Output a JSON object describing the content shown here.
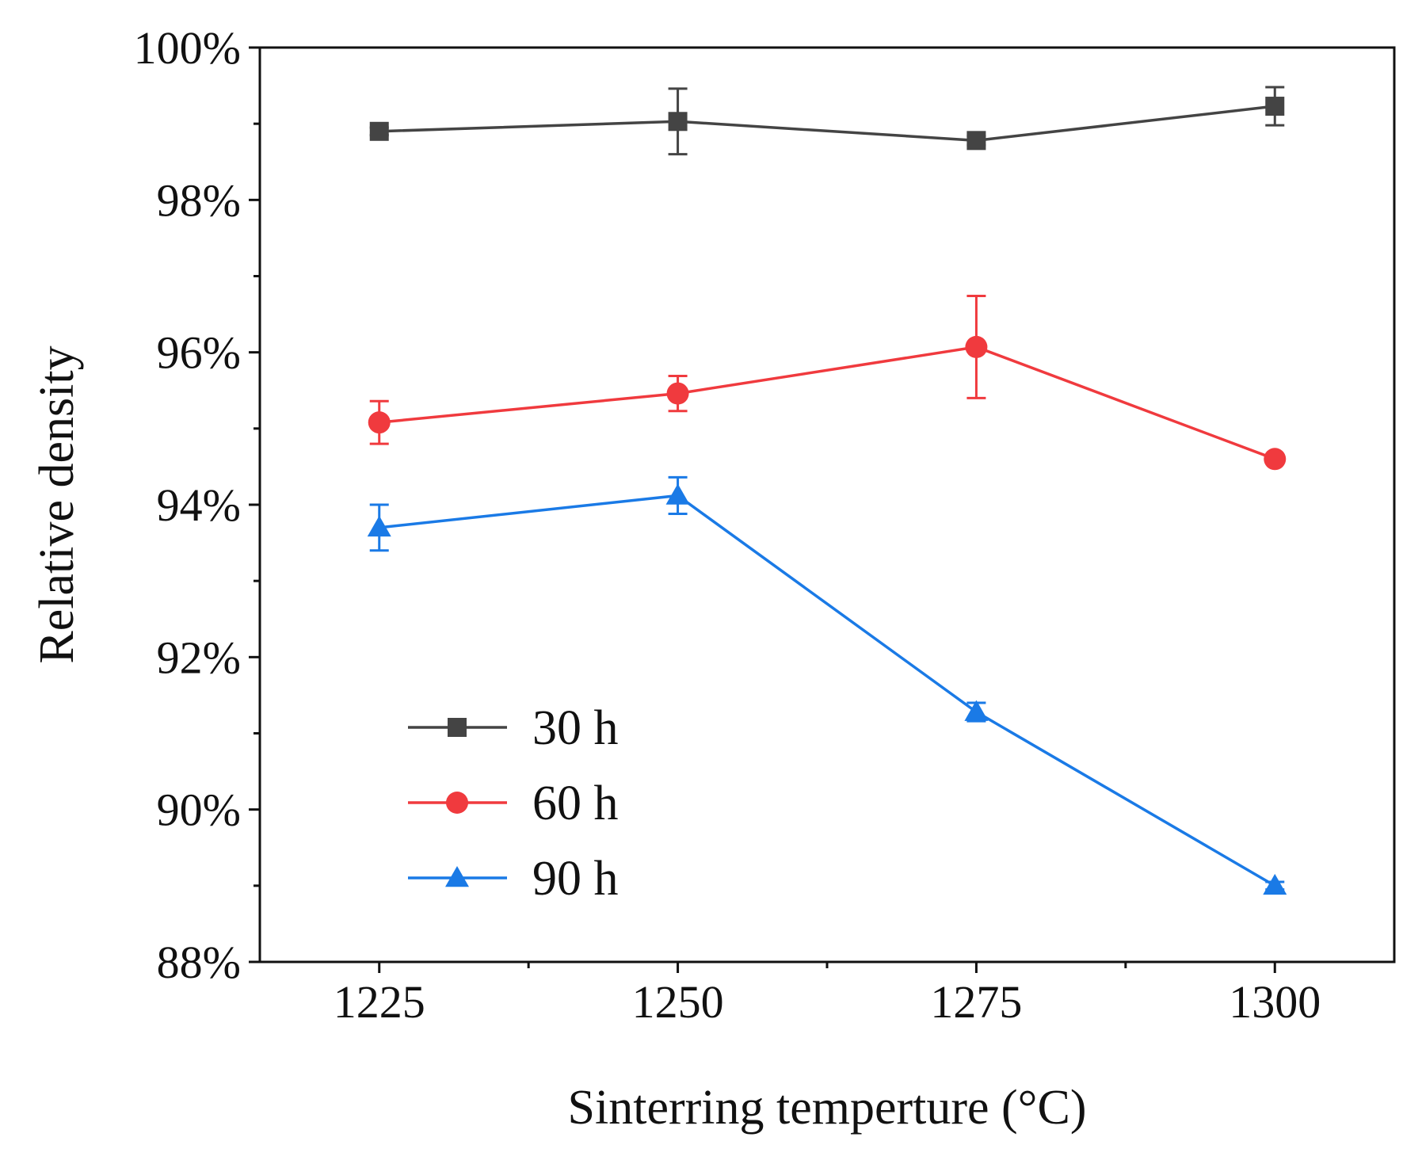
{
  "chart_data": {
    "type": "line",
    "title": "",
    "xlabel": "Sinterring temperture (°C)",
    "ylabel": "Relative density",
    "categories": [
      "1225",
      "1250",
      "1275",
      "1300"
    ],
    "x": [
      1225,
      1250,
      1275,
      1300
    ],
    "xlim": [
      1215,
      1310
    ],
    "ylim": [
      88,
      100
    ],
    "y_ticks": [
      88,
      90,
      92,
      94,
      96,
      98,
      100
    ],
    "y_tick_labels": [
      "88%",
      "90%",
      "92%",
      "94%",
      "96%",
      "98%",
      "100%"
    ],
    "x_tick_labels": [
      "1225",
      "1250",
      "1275",
      "1300"
    ],
    "legend_position": "bottom-left",
    "series": [
      {
        "name": "30 h",
        "color": "#444444",
        "marker": "square",
        "values": [
          98.9,
          99.03,
          98.78,
          99.23
        ],
        "errors": [
          0.05,
          0.43,
          0.06,
          0.25
        ]
      },
      {
        "name": "60 h",
        "color": "#f03a3e",
        "marker": "circle",
        "values": [
          95.08,
          95.46,
          96.07,
          94.6
        ],
        "errors": [
          0.28,
          0.23,
          0.67,
          0.05
        ]
      },
      {
        "name": "90 h",
        "color": "#1a7ae6",
        "marker": "triangle",
        "values": [
          93.7,
          94.12,
          91.28,
          89.0
        ],
        "errors": [
          0.3,
          0.24,
          0.12,
          0.05
        ]
      }
    ]
  }
}
